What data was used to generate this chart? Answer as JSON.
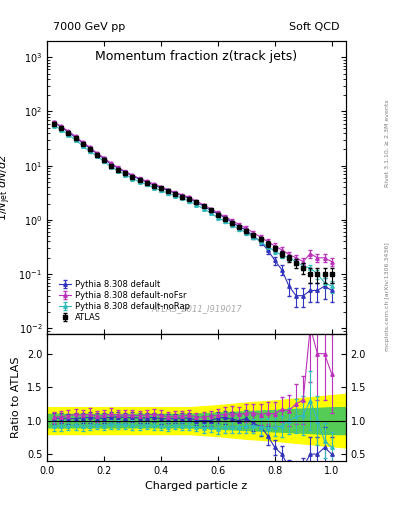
{
  "title": "Momentum fraction z(track jets)",
  "top_left_label": "7000 GeV pp",
  "top_right_label": "Soft QCD",
  "right_label_top": "Rivet 3.1.10, ≥ 2.3M events",
  "right_label_bottom": "mcplots.cern.ch [arXiv:1306.3436]",
  "watermark": "ATLAS_2011_I919017",
  "ylabel_main": "1/N$_{jet}$ dN/dz",
  "ylabel_ratio": "Ratio to ATLAS",
  "xlabel": "Charged particle z",
  "xlim": [
    0.0,
    1.05
  ],
  "ylim_main": [
    0.008,
    2000
  ],
  "ylim_ratio": [
    0.4,
    2.3
  ],
  "atlas_x": [
    0.025,
    0.05,
    0.075,
    0.1,
    0.125,
    0.15,
    0.175,
    0.2,
    0.225,
    0.25,
    0.275,
    0.3,
    0.325,
    0.35,
    0.375,
    0.4,
    0.425,
    0.45,
    0.475,
    0.5,
    0.525,
    0.55,
    0.575,
    0.6,
    0.625,
    0.65,
    0.675,
    0.7,
    0.725,
    0.75,
    0.775,
    0.8,
    0.825,
    0.85,
    0.875,
    0.9,
    0.925,
    0.95,
    0.975,
    1.0
  ],
  "atlas_y": [
    60,
    50,
    40,
    32,
    25,
    20,
    16,
    13,
    10,
    8.5,
    7.2,
    6.2,
    5.4,
    4.8,
    4.2,
    3.8,
    3.4,
    3.0,
    2.7,
    2.4,
    2.1,
    1.8,
    1.5,
    1.25,
    1.05,
    0.88,
    0.75,
    0.63,
    0.52,
    0.44,
    0.36,
    0.3,
    0.24,
    0.2,
    0.16,
    0.13,
    0.1,
    0.1,
    0.1,
    0.1
  ],
  "atlas_yerr": [
    3,
    2.5,
    2,
    1.6,
    1.2,
    1.0,
    0.8,
    0.65,
    0.5,
    0.4,
    0.35,
    0.3,
    0.25,
    0.22,
    0.2,
    0.18,
    0.16,
    0.14,
    0.12,
    0.11,
    0.1,
    0.09,
    0.08,
    0.07,
    0.07,
    0.06,
    0.05,
    0.05,
    0.04,
    0.04,
    0.04,
    0.03,
    0.03,
    0.03,
    0.03,
    0.03,
    0.03,
    0.03,
    0.03,
    0.03
  ],
  "py_default_x": [
    0.025,
    0.05,
    0.075,
    0.1,
    0.125,
    0.15,
    0.175,
    0.2,
    0.225,
    0.25,
    0.275,
    0.3,
    0.325,
    0.35,
    0.375,
    0.4,
    0.425,
    0.45,
    0.475,
    0.5,
    0.525,
    0.55,
    0.575,
    0.6,
    0.625,
    0.65,
    0.675,
    0.7,
    0.725,
    0.75,
    0.775,
    0.8,
    0.825,
    0.85,
    0.875,
    0.9,
    0.925,
    0.95,
    0.975,
    1.0
  ],
  "py_default_y": [
    62,
    52,
    41,
    33,
    26,
    21,
    16.5,
    13.5,
    10.5,
    9.0,
    7.5,
    6.5,
    5.6,
    5.0,
    4.4,
    3.9,
    3.5,
    3.1,
    2.8,
    2.5,
    2.1,
    1.8,
    1.5,
    1.3,
    1.1,
    0.9,
    0.75,
    0.65,
    0.5,
    0.4,
    0.28,
    0.18,
    0.12,
    0.06,
    0.04,
    0.04,
    0.05,
    0.05,
    0.06,
    0.05
  ],
  "py_default_yerr": [
    4,
    3,
    2.5,
    2,
    1.5,
    1.2,
    0.9,
    0.7,
    0.6,
    0.5,
    0.4,
    0.35,
    0.3,
    0.25,
    0.22,
    0.2,
    0.18,
    0.16,
    0.14,
    0.12,
    0.11,
    0.1,
    0.09,
    0.08,
    0.08,
    0.07,
    0.06,
    0.06,
    0.05,
    0.05,
    0.04,
    0.03,
    0.025,
    0.02,
    0.015,
    0.015,
    0.02,
    0.02,
    0.025,
    0.02
  ],
  "py_default_color": "#3333bb",
  "py_noFsr_x": [
    0.025,
    0.05,
    0.075,
    0.1,
    0.125,
    0.15,
    0.175,
    0.2,
    0.225,
    0.25,
    0.275,
    0.3,
    0.325,
    0.35,
    0.375,
    0.4,
    0.425,
    0.45,
    0.475,
    0.5,
    0.525,
    0.55,
    0.575,
    0.6,
    0.625,
    0.65,
    0.675,
    0.7,
    0.725,
    0.75,
    0.775,
    0.8,
    0.825,
    0.85,
    0.875,
    0.9,
    0.925,
    0.95,
    0.975,
    1.0
  ],
  "py_noFsr_y": [
    63,
    53,
    43,
    35,
    27,
    22,
    17,
    14,
    11,
    9.2,
    7.8,
    6.7,
    5.8,
    5.2,
    4.6,
    4.1,
    3.6,
    3.2,
    2.9,
    2.6,
    2.2,
    1.9,
    1.6,
    1.35,
    1.15,
    0.97,
    0.82,
    0.7,
    0.58,
    0.48,
    0.4,
    0.33,
    0.28,
    0.23,
    0.2,
    0.17,
    0.24,
    0.2,
    0.2,
    0.17
  ],
  "py_noFsr_yerr": [
    4,
    3,
    2.5,
    2,
    1.5,
    1.2,
    0.9,
    0.75,
    0.6,
    0.5,
    0.42,
    0.36,
    0.3,
    0.26,
    0.23,
    0.2,
    0.18,
    0.16,
    0.14,
    0.13,
    0.11,
    0.1,
    0.09,
    0.08,
    0.08,
    0.07,
    0.06,
    0.06,
    0.05,
    0.05,
    0.04,
    0.04,
    0.03,
    0.03,
    0.03,
    0.025,
    0.04,
    0.035,
    0.035,
    0.03
  ],
  "py_noFsr_color": "#bb33bb",
  "py_noRap_x": [
    0.025,
    0.05,
    0.075,
    0.1,
    0.125,
    0.15,
    0.175,
    0.2,
    0.225,
    0.25,
    0.275,
    0.3,
    0.325,
    0.35,
    0.375,
    0.4,
    0.425,
    0.45,
    0.475,
    0.5,
    0.525,
    0.55,
    0.575,
    0.6,
    0.625,
    0.65,
    0.675,
    0.7,
    0.725,
    0.75,
    0.775,
    0.8,
    0.825,
    0.85,
    0.875,
    0.9,
    0.925,
    0.95,
    0.975,
    1.0
  ],
  "py_noRap_y": [
    55,
    46,
    37,
    30,
    23,
    18.5,
    15,
    12,
    9.5,
    8.0,
    6.8,
    5.8,
    5.0,
    4.5,
    3.9,
    3.5,
    3.1,
    2.8,
    2.5,
    2.2,
    1.9,
    1.6,
    1.35,
    1.1,
    0.95,
    0.8,
    0.68,
    0.58,
    0.48,
    0.4,
    0.32,
    0.27,
    0.22,
    0.2,
    0.17,
    0.14,
    0.13,
    0.1,
    0.07,
    0.06
  ],
  "py_noRap_yerr": [
    3.5,
    2.8,
    2.2,
    1.8,
    1.3,
    1.1,
    0.8,
    0.65,
    0.55,
    0.45,
    0.38,
    0.32,
    0.27,
    0.23,
    0.2,
    0.18,
    0.16,
    0.14,
    0.12,
    0.11,
    0.1,
    0.09,
    0.08,
    0.07,
    0.07,
    0.06,
    0.05,
    0.05,
    0.04,
    0.04,
    0.04,
    0.03,
    0.025,
    0.025,
    0.025,
    0.02,
    0.02,
    0.02,
    0.015,
    0.015
  ],
  "py_noRap_color": "#33bbbb",
  "band_x": [
    0.0,
    0.1,
    0.2,
    0.3,
    0.4,
    0.5,
    0.6,
    0.7,
    0.8,
    0.9,
    1.0,
    1.05
  ],
  "band_green_lo": [
    0.9,
    0.9,
    0.9,
    0.9,
    0.9,
    0.9,
    0.88,
    0.86,
    0.84,
    0.82,
    0.8,
    0.8
  ],
  "band_green_hi": [
    1.1,
    1.1,
    1.1,
    1.1,
    1.1,
    1.1,
    1.12,
    1.14,
    1.16,
    1.18,
    1.2,
    1.2
  ],
  "band_yellow_lo": [
    0.8,
    0.8,
    0.8,
    0.8,
    0.8,
    0.8,
    0.77,
    0.73,
    0.7,
    0.66,
    0.62,
    0.6
  ],
  "band_yellow_hi": [
    1.2,
    1.2,
    1.2,
    1.2,
    1.2,
    1.2,
    1.23,
    1.27,
    1.3,
    1.34,
    1.38,
    1.4
  ],
  "legend_entries": [
    "ATLAS",
    "Pythia 8.308 default",
    "Pythia 8.308 default-noFsr",
    "Pythia 8.308 default-noRap"
  ],
  "atlas_color": "black",
  "background_color": "white",
  "axis_label_fontsize": 8,
  "title_fontsize": 9,
  "tick_label_fontsize": 7
}
